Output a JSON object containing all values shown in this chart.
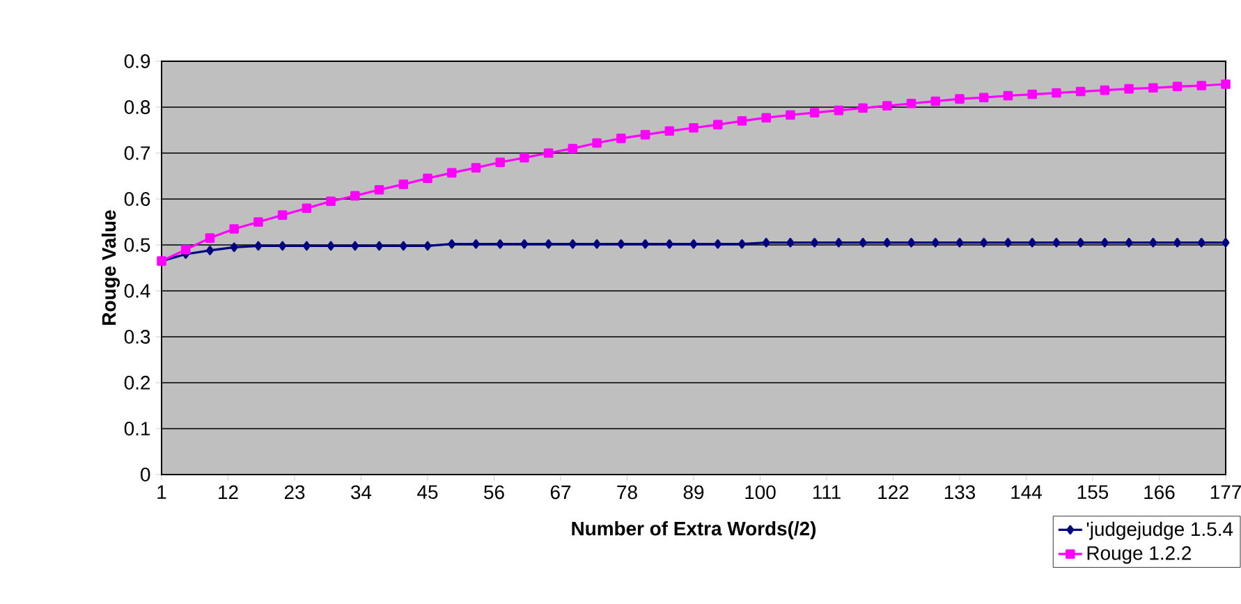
{
  "chart_data": {
    "type": "line",
    "xlabel": "Number of Extra Words(/2)",
    "ylabel": "Rouge Value",
    "xlim": [
      1,
      177
    ],
    "xticks": [
      1,
      12,
      23,
      34,
      45,
      56,
      67,
      78,
      89,
      100,
      111,
      122,
      133,
      144,
      155,
      166,
      177
    ],
    "ylim": [
      0,
      0.9
    ],
    "yticks": [
      0,
      0.1,
      0.2,
      0.3,
      0.4,
      0.5,
      0.6,
      0.7,
      0.8,
      0.9
    ],
    "grid": "y",
    "legend": "bottom right",
    "line_style": "solid",
    "x": [
      1,
      5,
      9,
      13,
      17,
      21,
      25,
      29,
      33,
      37,
      41,
      45,
      49,
      53,
      57,
      61,
      65,
      69,
      73,
      77,
      81,
      85,
      89,
      93,
      97,
      101,
      105,
      109,
      113,
      117,
      121,
      125,
      129,
      133,
      137,
      141,
      145,
      149,
      153,
      157,
      161,
      165,
      169,
      173,
      177
    ],
    "series": [
      {
        "name": "'judgejudge 1.5.4",
        "color": "#000080",
        "marker": "diamond",
        "values": [
          0.465,
          0.48,
          0.488,
          0.495,
          0.498,
          0.498,
          0.498,
          0.498,
          0.498,
          0.498,
          0.498,
          0.498,
          0.502,
          0.502,
          0.502,
          0.502,
          0.502,
          0.502,
          0.502,
          0.502,
          0.502,
          0.502,
          0.502,
          0.502,
          0.502,
          0.505,
          0.505,
          0.505,
          0.505,
          0.505,
          0.505,
          0.505,
          0.505,
          0.505,
          0.505,
          0.505,
          0.505,
          0.505,
          0.505,
          0.505,
          0.505,
          0.505,
          0.505,
          0.505,
          0.505
        ]
      },
      {
        "name": "Rouge 1.2.2",
        "color": "#ff00ff",
        "marker": "square",
        "values": [
          0.465,
          0.49,
          0.515,
          0.535,
          0.55,
          0.565,
          0.58,
          0.595,
          0.607,
          0.62,
          0.632,
          0.645,
          0.657,
          0.668,
          0.68,
          0.69,
          0.7,
          0.71,
          0.722,
          0.732,
          0.74,
          0.748,
          0.755,
          0.762,
          0.77,
          0.777,
          0.783,
          0.788,
          0.793,
          0.798,
          0.803,
          0.808,
          0.813,
          0.818,
          0.821,
          0.825,
          0.828,
          0.831,
          0.834,
          0.837,
          0.84,
          0.842,
          0.845,
          0.847,
          0.85
        ]
      }
    ]
  }
}
